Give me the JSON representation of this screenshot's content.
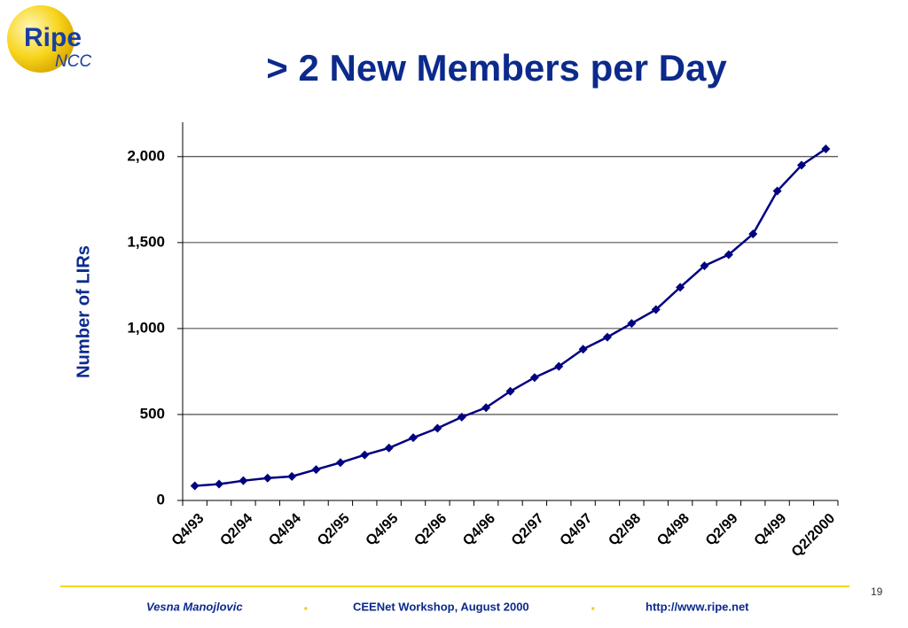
{
  "logo": {
    "name": "Ripe",
    "sub": "NCC"
  },
  "chart_data": {
    "type": "line",
    "title": "> 2 New Members per Day",
    "y_label": "Number of LIRs",
    "categories": [
      "Q4/93",
      null,
      "Q2/94",
      null,
      "Q4/94",
      null,
      "Q2/95",
      null,
      "Q4/95",
      null,
      "Q2/96",
      null,
      "Q4/96",
      null,
      "Q2/97",
      null,
      "Q4/97",
      null,
      "Q2/98",
      null,
      "Q4/98",
      null,
      "Q2/99",
      null,
      "Q4/99",
      null,
      "Q2/2000"
    ],
    "series": [
      {
        "name": "Number of LIRs",
        "color": "#000080",
        "values": [
          85,
          95,
          115,
          130,
          140,
          180,
          220,
          265,
          305,
          365,
          420,
          485,
          540,
          635,
          715,
          780,
          880,
          950,
          1030,
          1110,
          1240,
          1365,
          1430,
          1550,
          1800,
          1950,
          2045
        ]
      }
    ],
    "ylim": [
      0,
      2200
    ],
    "yticks": [
      0,
      500,
      {
        "value": 1000,
        "label": "1,000"
      },
      {
        "value": 1500,
        "label": "1,500"
      },
      {
        "value": 2000,
        "label": "2,000"
      }
    ],
    "grid": true
  },
  "footer": {
    "author": "Vesna Manojlovic",
    "separator": ".",
    "event": "CEENet Workshop, August 2000",
    "url": "http://www.ripe.net",
    "page": "19"
  }
}
